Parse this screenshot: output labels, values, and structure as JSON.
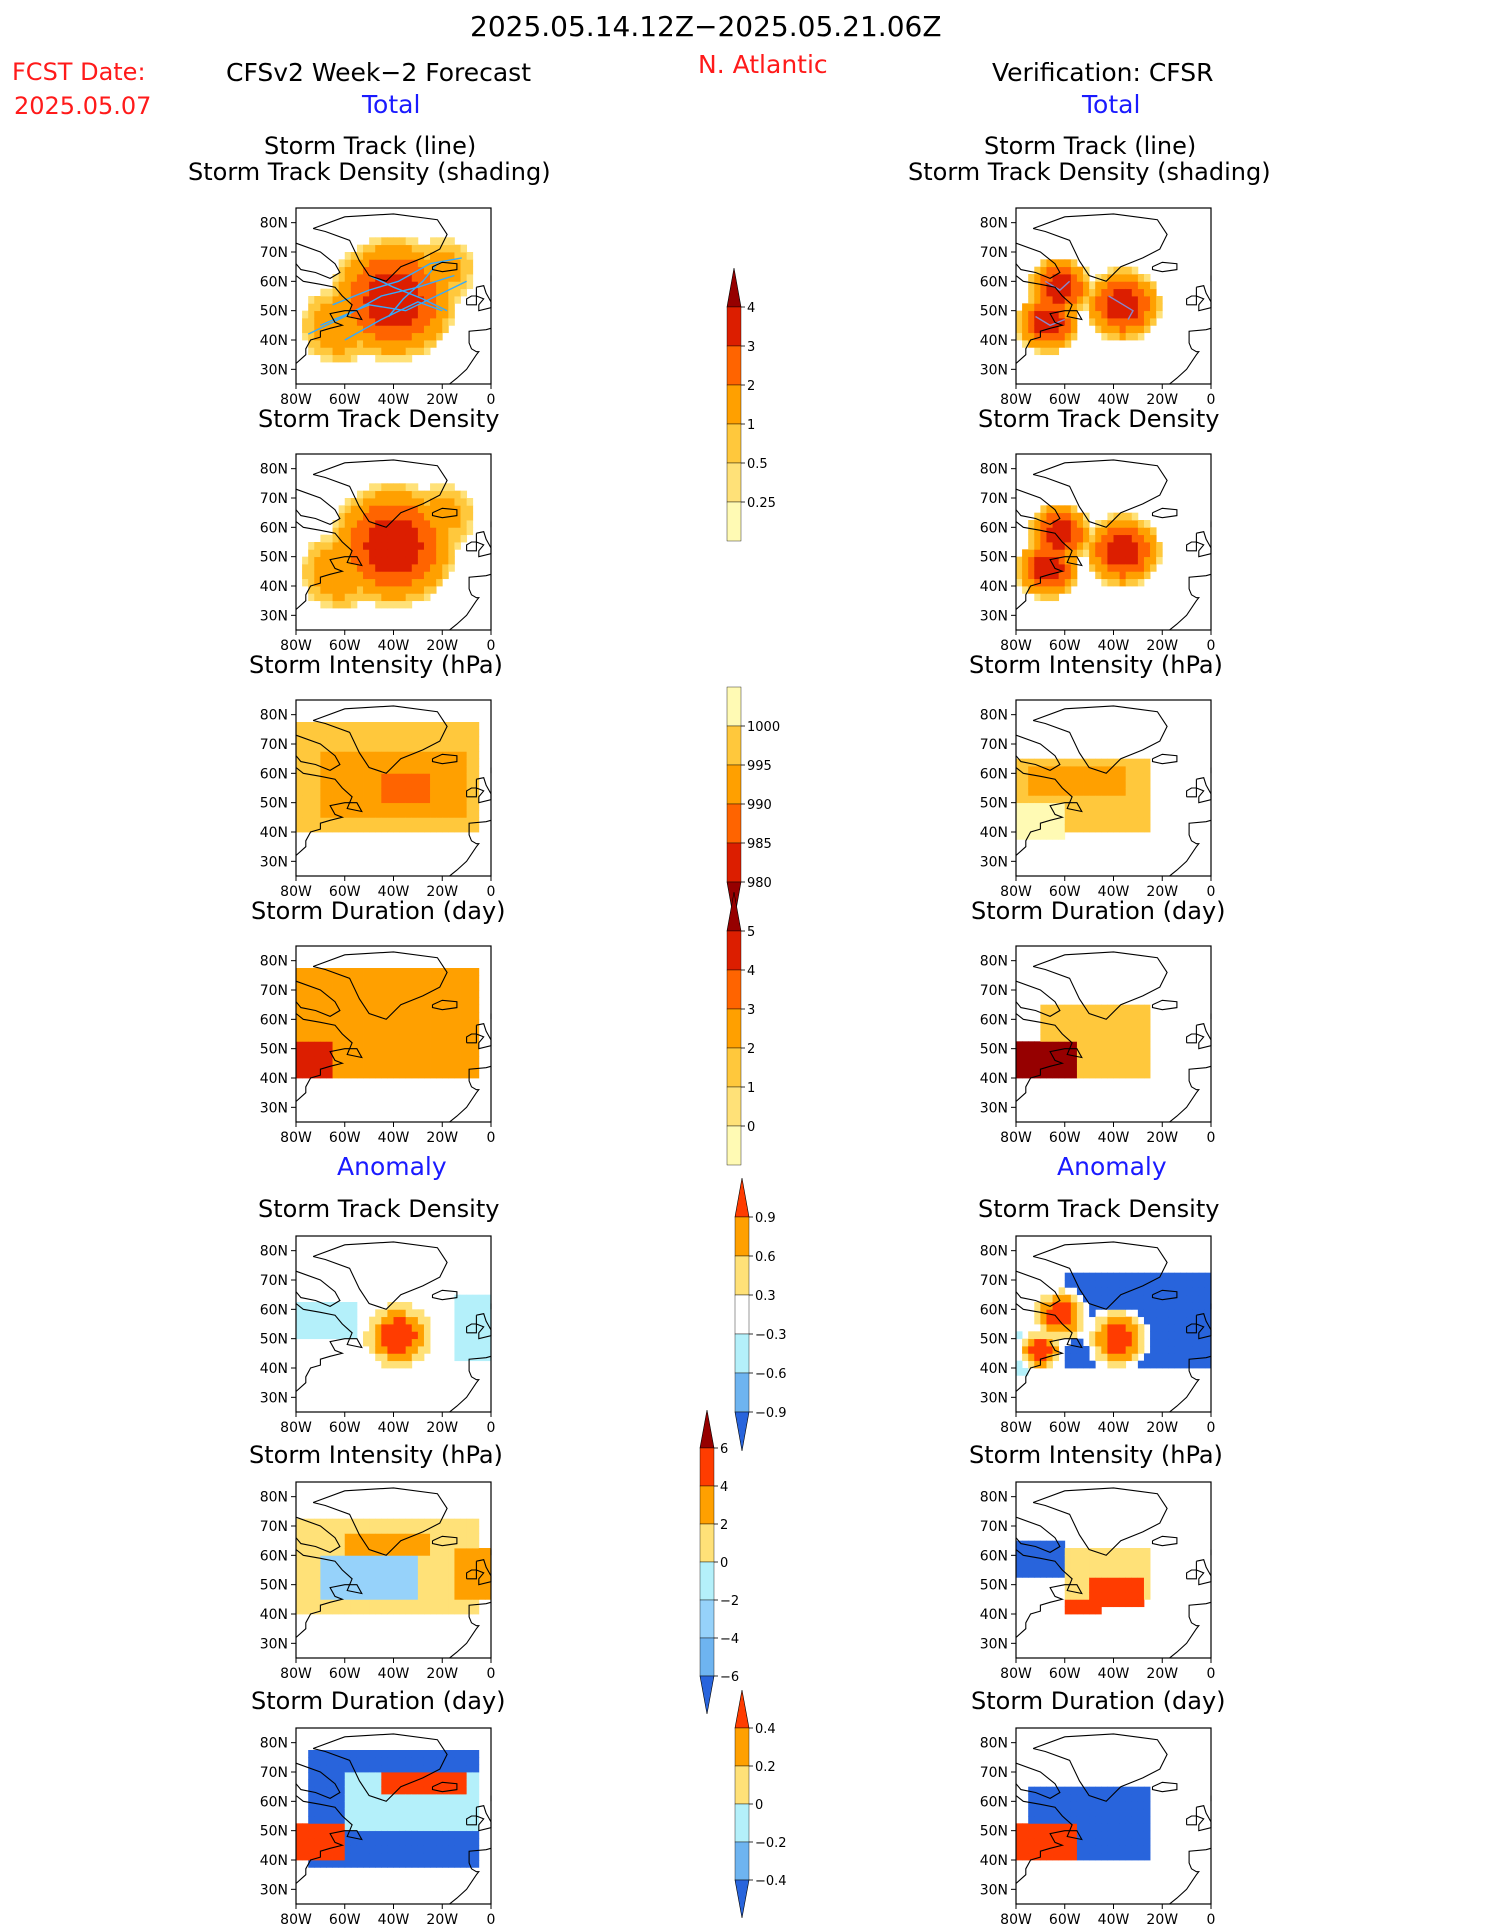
{
  "header": {
    "period": "2025.05.14.12Z−2025.05.21.06Z",
    "fcst_label": "FCST Date:",
    "fcst_date": "2025.05.07",
    "model": "CFSv2 Week−2 Forecast",
    "region": "N. Atlantic",
    "verification": "Verification: CFSR"
  },
  "sections": {
    "total": "Total",
    "anomaly": "Anomaly"
  },
  "panel_titles": {
    "track_line": "Storm Track (line)",
    "track_shading": "Storm Track Density (shading)",
    "track_density": "Storm Track Density",
    "intensity": "Storm Intensity (hPa)",
    "duration": "Storm Duration (day)"
  },
  "axes": {
    "lat_ticks": [
      "80N",
      "70N",
      "60N",
      "50N",
      "40N",
      "30N"
    ],
    "lon_ticks": [
      "80W",
      "60W",
      "40W",
      "20W",
      "0"
    ]
  },
  "colors": {
    "land_outline": "#000000",
    "track_forecast": "#33aaff",
    "track_verification": "#8888cc"
  },
  "colorbars": [
    {
      "id": "density",
      "labels": [
        "4",
        "3",
        "2",
        "1",
        "0.5",
        "0.25"
      ],
      "colors": [
        "#960000",
        "#dc1e00",
        "#ff6400",
        "#ffa000",
        "#ffc83c",
        "#ffe178",
        "#fffab4"
      ],
      "arrows": "top"
    },
    {
      "id": "intensity",
      "labels": [
        "1000",
        "995",
        "990",
        "985",
        "980"
      ],
      "colors": [
        "#fffab4",
        "#ffc83c",
        "#ffa000",
        "#ff6400",
        "#dc1e00",
        "#960000"
      ],
      "arrows": "bottom"
    },
    {
      "id": "duration",
      "labels": [
        "5",
        "4",
        "3",
        "2",
        "1",
        "0"
      ],
      "colors": [
        "#960000",
        "#dc1e00",
        "#ff6400",
        "#ffa000",
        "#ffc83c",
        "#ffe178",
        "#fffab4"
      ],
      "arrows": "top"
    },
    {
      "id": "density_anom",
      "labels": [
        "0.9",
        "0.6",
        "0.3",
        "−0.3",
        "−0.6",
        "−0.9"
      ],
      "colors": [
        "#ff3c00",
        "#ffa000",
        "#ffe178",
        "#ffffff",
        "#b4f0fa",
        "#6eb4f0",
        "#2864dc"
      ],
      "arrows": "both"
    },
    {
      "id": "intensity_anom",
      "labels": [
        "6",
        "4",
        "2",
        "0",
        "−2",
        "−4",
        "−6"
      ],
      "colors": [
        "#960000",
        "#ff3c00",
        "#ffa000",
        "#ffe178",
        "#b4f0fa",
        "#96d2fa",
        "#6eb4f0",
        "#2864dc"
      ],
      "arrows": "both"
    },
    {
      "id": "duration_anom",
      "labels": [
        "0.4",
        "0.2",
        "0",
        "−0.2",
        "−0.4"
      ],
      "colors": [
        "#ff3c00",
        "#ffa000",
        "#ffe178",
        "#b4f0fa",
        "#6eb4f0",
        "#2864dc"
      ],
      "arrows": "both"
    }
  ],
  "chart_data": [
    {
      "type": "heatmap",
      "panel": "forecast-track",
      "title": "Storm Track (line)",
      "subtitle": "Storm Track Density (shading)",
      "xlim": [
        -80,
        0
      ],
      "ylim": [
        25,
        85
      ],
      "blobs": [
        {
          "lon": -40,
          "lat": 54,
          "r": 22,
          "v": 4
        },
        {
          "lon": -62,
          "lat": 45,
          "r": 14,
          "v": 2
        },
        {
          "lon": -20,
          "lat": 64,
          "r": 12,
          "v": 1.5
        }
      ],
      "has_tracks": true
    },
    {
      "type": "heatmap",
      "panel": "verif-track",
      "title": "Storm Track (line)",
      "subtitle": "Storm Track Density (shading)",
      "xlim": [
        -80,
        0
      ],
      "ylim": [
        25,
        85
      ],
      "blobs": [
        {
          "lon": -62,
          "lat": 58,
          "r": 11,
          "v": 4
        },
        {
          "lon": -67,
          "lat": 46,
          "r": 11,
          "v": 4
        },
        {
          "lon": -36,
          "lat": 52,
          "r": 13,
          "v": 4
        }
      ],
      "has_tracks": true
    },
    {
      "type": "heatmap",
      "panel": "forecast-density",
      "title": "Storm Track Density",
      "xlim": [
        -80,
        0
      ],
      "ylim": [
        25,
        85
      ],
      "blobs": [
        {
          "lon": -40,
          "lat": 54,
          "r": 22,
          "v": 4
        },
        {
          "lon": -62,
          "lat": 45,
          "r": 14,
          "v": 2
        },
        {
          "lon": -20,
          "lat": 64,
          "r": 12,
          "v": 1.5
        }
      ]
    },
    {
      "type": "heatmap",
      "panel": "verif-density",
      "title": "Storm Track Density",
      "xlim": [
        -80,
        0
      ],
      "ylim": [
        25,
        85
      ],
      "blobs": [
        {
          "lon": -62,
          "lat": 58,
          "r": 11,
          "v": 4
        },
        {
          "lon": -67,
          "lat": 46,
          "r": 11,
          "v": 4
        },
        {
          "lon": -36,
          "lat": 52,
          "r": 13,
          "v": 4
        }
      ]
    },
    {
      "type": "heatmap",
      "panel": "forecast-intensity",
      "title": "Storm Intensity (hPa)",
      "xlim": [
        -80,
        0
      ],
      "ylim": [
        25,
        85
      ],
      "boxes": [
        {
          "lon": [
            -80,
            -5
          ],
          "lat": [
            40,
            78
          ],
          "v": 995
        },
        {
          "lon": [
            -70,
            -10
          ],
          "lat": [
            45,
            68
          ],
          "v": 992
        },
        {
          "lon": [
            -45,
            -25
          ],
          "lat": [
            50,
            60
          ],
          "v": 988
        }
      ]
    },
    {
      "type": "heatmap",
      "panel": "verif-intensity",
      "title": "Storm Intensity (hPa)",
      "xlim": [
        -80,
        0
      ],
      "ylim": [
        25,
        85
      ],
      "boxes": [
        {
          "lon": [
            -80,
            -25
          ],
          "lat": [
            40,
            65
          ],
          "v": 995
        },
        {
          "lon": [
            -75,
            -35
          ],
          "lat": [
            52,
            63
          ],
          "v": 992
        },
        {
          "lon": [
            -80,
            -60
          ],
          "lat": [
            38,
            50
          ],
          "v": 998
        }
      ]
    },
    {
      "type": "heatmap",
      "panel": "forecast-duration",
      "title": "Storm Duration (day)",
      "xlim": [
        -80,
        0
      ],
      "ylim": [
        25,
        85
      ],
      "boxes": [
        {
          "lon": [
            -80,
            -5
          ],
          "lat": [
            40,
            78
          ],
          "v": 2
        },
        {
          "lon": [
            -80,
            -65
          ],
          "lat": [
            40,
            52
          ],
          "v": 4.5
        },
        {
          "lon": [
            -60,
            -15
          ],
          "lat": [
            45,
            65
          ],
          "v": 2.5
        }
      ]
    },
    {
      "type": "heatmap",
      "panel": "verif-duration",
      "title": "Storm Duration (day)",
      "xlim": [
        -80,
        0
      ],
      "ylim": [
        25,
        85
      ],
      "boxes": [
        {
          "lon": [
            -70,
            -25
          ],
          "lat": [
            40,
            65
          ],
          "v": 1.5
        },
        {
          "lon": [
            -80,
            -55
          ],
          "lat": [
            40,
            52
          ],
          "v": 5
        }
      ]
    },
    {
      "type": "heatmap",
      "panel": "forecast-density-anom",
      "title": "Storm Track Density",
      "xlim": [
        -80,
        0
      ],
      "ylim": [
        25,
        85
      ],
      "boxes": [
        {
          "lon": [
            -80,
            -55
          ],
          "lat": [
            50,
            63
          ],
          "v": -0.4
        },
        {
          "lon": [
            -15,
            0
          ],
          "lat": [
            42,
            65
          ],
          "v": -0.5
        }
      ],
      "blobs": [
        {
          "lon": -38,
          "lat": 51,
          "r": 13,
          "v": 1.2
        }
      ]
    },
    {
      "type": "heatmap",
      "panel": "verif-density-anom",
      "title": "Storm Track Density",
      "xlim": [
        -80,
        0
      ],
      "ylim": [
        25,
        85
      ],
      "boxes": [
        {
          "lon": [
            -60,
            0
          ],
          "lat": [
            40,
            72
          ],
          "v": -0.9
        },
        {
          "lon": [
            -80,
            -70
          ],
          "lat": [
            38,
            52
          ],
          "v": -0.4
        }
      ],
      "blobs": [
        {
          "lon": -62,
          "lat": 58,
          "r": 10,
          "v": 1.2
        },
        {
          "lon": -38,
          "lat": 50,
          "r": 11,
          "v": 1.2
        },
        {
          "lon": -70,
          "lat": 46,
          "r": 8,
          "v": 1.2
        }
      ]
    },
    {
      "type": "heatmap",
      "panel": "forecast-intensity-anom",
      "title": "Storm Intensity (hPa)",
      "xlim": [
        -80,
        0
      ],
      "ylim": [
        25,
        85
      ],
      "boxes": [
        {
          "lon": [
            -80,
            -5
          ],
          "lat": [
            40,
            72
          ],
          "v": 1
        },
        {
          "lon": [
            -70,
            -30
          ],
          "lat": [
            45,
            60
          ],
          "v": -3
        },
        {
          "lon": [
            -60,
            -25
          ],
          "lat": [
            60,
            68
          ],
          "v": 3
        },
        {
          "lon": [
            -15,
            0
          ],
          "lat": [
            45,
            62
          ],
          "v": 3
        }
      ]
    },
    {
      "type": "heatmap",
      "panel": "verif-intensity-anom",
      "title": "Storm Intensity (hPa)",
      "xlim": [
        -80,
        0
      ],
      "ylim": [
        25,
        85
      ],
      "boxes": [
        {
          "lon": [
            -80,
            -60
          ],
          "lat": [
            52,
            65
          ],
          "v": -4
        },
        {
          "lon": [
            -60,
            -25
          ],
          "lat": [
            45,
            63
          ],
          "v": 1
        },
        {
          "lon": [
            -50,
            -28
          ],
          "lat": [
            42,
            52
          ],
          "v": 4
        },
        {
          "lon": [
            -60,
            -45
          ],
          "lat": [
            40,
            46
          ],
          "v": 5
        }
      ]
    },
    {
      "type": "heatmap",
      "panel": "forecast-duration-anom",
      "title": "Storm Duration (day)",
      "xlim": [
        -80,
        0
      ],
      "ylim": [
        25,
        85
      ],
      "boxes": [
        {
          "lon": [
            -75,
            -5
          ],
          "lat": [
            38,
            78
          ],
          "v": -0.5
        },
        {
          "lon": [
            -80,
            -60
          ],
          "lat": [
            40,
            52
          ],
          "v": 0.5
        },
        {
          "lon": [
            -60,
            -5
          ],
          "lat": [
            50,
            70
          ],
          "v": -0.1
        },
        {
          "lon": [
            -45,
            -10
          ],
          "lat": [
            62,
            70
          ],
          "v": 0.5
        }
      ]
    },
    {
      "type": "heatmap",
      "panel": "verif-duration-anom",
      "title": "Storm Duration (day)",
      "xlim": [
        -80,
        0
      ],
      "ylim": [
        25,
        85
      ],
      "boxes": [
        {
          "lon": [
            -75,
            -25
          ],
          "lat": [
            40,
            65
          ],
          "v": -0.5
        },
        {
          "lon": [
            -80,
            -55
          ],
          "lat": [
            40,
            52
          ],
          "v": 0.5
        }
      ]
    }
  ]
}
